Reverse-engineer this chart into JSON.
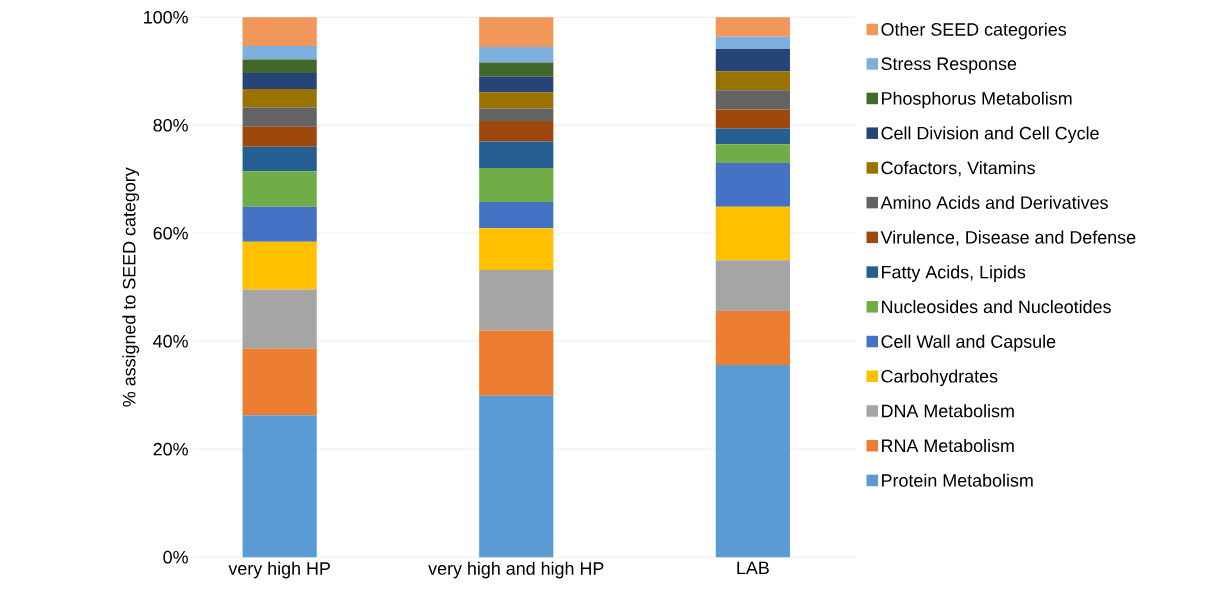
{
  "chart_data": {
    "type": "bar",
    "stacked": true,
    "ylabel": "% assigned to SEED category",
    "categories": [
      "very high HP",
      "very high and high HP",
      "LAB"
    ],
    "ylim": [
      0,
      100
    ],
    "yticks": [
      {
        "value": 0,
        "label": "0%"
      },
      {
        "value": 20,
        "label": "20%"
      },
      {
        "value": 40,
        "label": "40%"
      },
      {
        "value": 60,
        "label": "60%"
      },
      {
        "value": 80,
        "label": "80%"
      },
      {
        "value": 100,
        "label": "100%"
      }
    ],
    "grid": "y",
    "legend": "right",
    "series": [
      {
        "name": "Protein Metabolism",
        "color": "#5b9bd5",
        "values": [
          26.3,
          29.9,
          35.6
        ]
      },
      {
        "name": "RNA Metabolism",
        "color": "#ed7d31",
        "values": [
          12.3,
          12.1,
          10.0
        ]
      },
      {
        "name": "DNA Metabolism",
        "color": "#a5a5a5",
        "values": [
          11.0,
          11.2,
          9.4
        ]
      },
      {
        "name": "Carbohydrates",
        "color": "#ffc000",
        "values": [
          8.8,
          7.7,
          9.9
        ]
      },
      {
        "name": "Cell Wall and Capsule",
        "color": "#4472c4",
        "values": [
          6.5,
          4.9,
          8.1
        ]
      },
      {
        "name": "Nucleosides and Nucleotides",
        "color": "#70ad47",
        "values": [
          6.6,
          6.3,
          3.5
        ]
      },
      {
        "name": "Fatty Acids, Lipids",
        "color": "#255e91",
        "values": [
          4.5,
          4.9,
          2.9
        ]
      },
      {
        "name": "Virulence, Disease and Defense",
        "color": "#9e480e",
        "values": [
          3.7,
          3.8,
          3.5
        ]
      },
      {
        "name": "Amino Acids and Derivatives",
        "color": "#636363",
        "values": [
          3.6,
          2.3,
          3.6
        ]
      },
      {
        "name": "Cofactors, Vitamins",
        "color": "#997300",
        "values": [
          3.4,
          3.0,
          3.5
        ]
      },
      {
        "name": "Cell Division and Cell Cycle",
        "color": "#264478",
        "values": [
          3.0,
          2.9,
          4.1
        ]
      },
      {
        "name": "Phosphorus Metabolism",
        "color": "#43682b",
        "values": [
          2.5,
          2.6,
          0
        ]
      },
      {
        "name": "Stress Response",
        "color": "#7cafdd",
        "values": [
          2.5,
          2.9,
          2.3
        ]
      },
      {
        "name": "Other SEED categories",
        "color": "#f1975a",
        "values": [
          5.3,
          5.5,
          3.6
        ]
      }
    ]
  }
}
